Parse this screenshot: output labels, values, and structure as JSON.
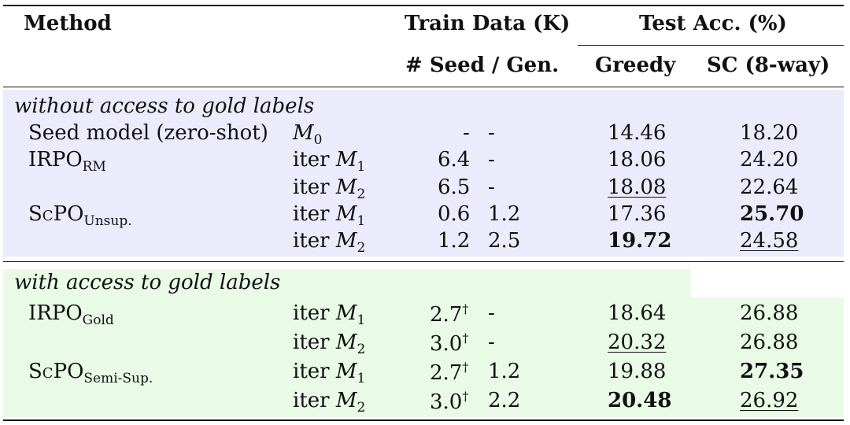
{
  "header": {
    "method": "Method",
    "train_data": "Train Data (K)",
    "test_acc": "Test Acc. (%)",
    "seed_gen": "# Seed / Gen.",
    "greedy": "Greedy",
    "sc": "SC (8-way)"
  },
  "sections": [
    {
      "title": "without access to gold labels",
      "color": "#ebebfb",
      "rows": [
        {
          "method": "Seed model (zero-shot)",
          "model_pre": "",
          "model_var": "M",
          "model_sub": "0",
          "seed": "-",
          "gen": "-",
          "greedy": "14.46",
          "sc": "18.20"
        },
        {
          "method_base": "IRPO",
          "method_sub": "RM",
          "model_pre": "iter ",
          "model_var": "M",
          "model_sub": "1",
          "seed": "6.4",
          "gen": "-",
          "greedy": "18.06",
          "sc": "24.20"
        },
        {
          "method": "",
          "model_pre": "iter ",
          "model_var": "M",
          "model_sub": "2",
          "seed": "6.5",
          "gen": "-",
          "greedy": "18.08",
          "sc": "22.64"
        },
        {
          "method_base": "ScPO",
          "method_sub": "Unsup.",
          "model_pre": "iter ",
          "model_var": "M",
          "model_sub": "1",
          "seed": "0.6",
          "gen": "1.2",
          "greedy": "17.36",
          "sc": "25.70"
        },
        {
          "method": "",
          "model_pre": "iter ",
          "model_var": "M",
          "model_sub": "2",
          "seed": "1.2",
          "gen": "2.5",
          "greedy": "19.72",
          "sc": "24.58"
        }
      ]
    },
    {
      "title": "with access to gold labels",
      "color": "#e9fae7",
      "rows": [
        {
          "method_base": "IRPO",
          "method_sub": "Gold",
          "model_pre": "iter ",
          "model_var": "M",
          "model_sub": "1",
          "seed": "2.7",
          "seed_sup": "†",
          "gen": "-",
          "greedy": "18.64",
          "sc": "26.88"
        },
        {
          "method": "",
          "model_pre": "iter ",
          "model_var": "M",
          "model_sub": "2",
          "seed": "3.0",
          "seed_sup": "†",
          "gen": "-",
          "greedy": "20.32",
          "sc": "26.88"
        },
        {
          "method_base": "ScPO",
          "method_sub": "Semi-Sup.",
          "model_pre": "iter ",
          "model_var": "M",
          "model_sub": "1",
          "seed": "2.7",
          "seed_sup": "†",
          "gen": "1.2",
          "greedy": "19.88",
          "sc": "27.35"
        },
        {
          "method": "",
          "model_pre": "iter ",
          "model_var": "M",
          "model_sub": "2",
          "seed": "3.0",
          "seed_sup": "†",
          "gen": "2.2",
          "greedy": "20.48",
          "sc": "26.92"
        }
      ]
    }
  ]
}
